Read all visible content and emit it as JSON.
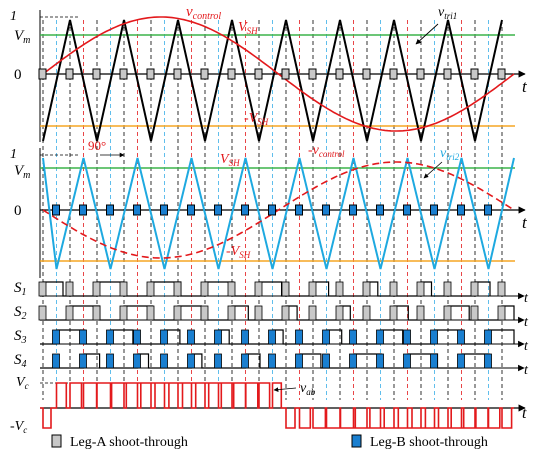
{
  "colors": {
    "tri": "#000000",
    "tri2": "#1ea9e0",
    "control": "#e3191c",
    "vsh_pos": "#3bb34a",
    "vsh_neg": "#f5a623",
    "legA": "#c8c8c8",
    "legB": "#1a7fd0",
    "vab": "#e3191c",
    "blue_dash": "#3aaee8",
    "purple_dash": "#7a55c9"
  },
  "panel_a": {
    "y1": "1",
    "vm": "V",
    "vm_sub": "m",
    "zero": "0",
    "t": "t",
    "vcontrol": "v",
    "vcontrol_sub": "control",
    "vsh": "V",
    "vsh_sub": "SH",
    "neg_vsh": "-V",
    "neg_vsh_sub": "SH",
    "vtri": "v",
    "vtri_sub": "tri1"
  },
  "panel_b": {
    "y1": "1",
    "vm": "V",
    "vm_sub": "m",
    "zero": "0",
    "t": "t",
    "deg": "90°",
    "vsh": "V",
    "vsh_sub": "SH",
    "neg_vcontrol": "-v",
    "neg_vcontrol_sub": "control",
    "vtri": "v",
    "vtri_sub": "tri2",
    "neg_vsh": "-V",
    "neg_vsh_sub": "SH"
  },
  "switches": [
    {
      "label": "S",
      "sub": "1",
      "t": "t"
    },
    {
      "label": "S",
      "sub": "2",
      "t": "t"
    },
    {
      "label": "S",
      "sub": "3",
      "t": "t"
    },
    {
      "label": "S",
      "sub": "4",
      "t": "t"
    }
  ],
  "vab_panel": {
    "vc": "V",
    "vc_sub": "c",
    "neg_vc": "-V",
    "neg_vc_sub": "c",
    "vab": "v",
    "vab_sub": "ab",
    "t": "t"
  },
  "legend": {
    "legA": "Leg-A shoot-through",
    "legB": "Leg-B shoot-through"
  }
}
